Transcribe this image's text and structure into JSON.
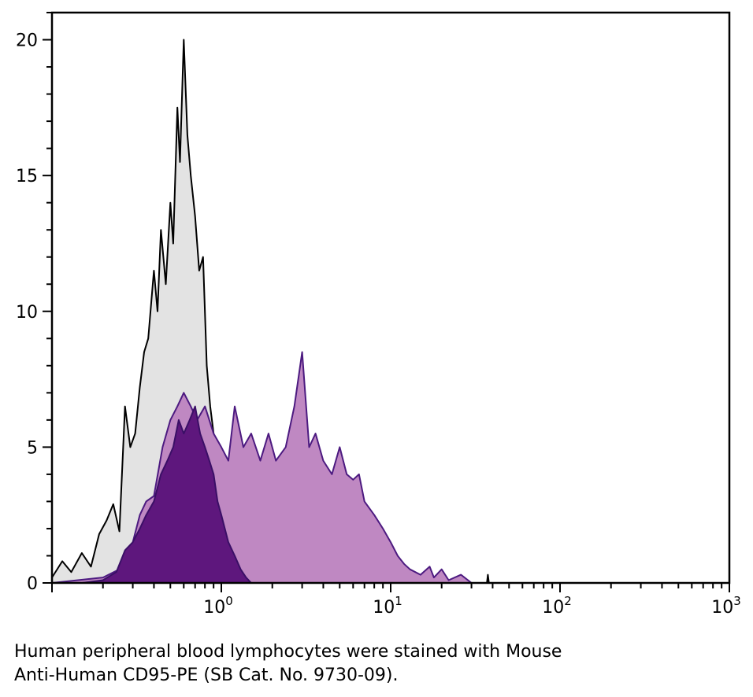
{
  "chart_data": {
    "type": "area",
    "title": "",
    "xlabel": "",
    "ylabel": "",
    "x_scale": "log",
    "xlim": [
      0.1,
      1000
    ],
    "ylim": [
      0,
      21
    ],
    "grid": false,
    "x_ticks": [
      {
        "base": "10",
        "exp": "0",
        "value": 1
      },
      {
        "base": "10",
        "exp": "1",
        "value": 10
      },
      {
        "base": "10",
        "exp": "2",
        "value": 100
      },
      {
        "base": "10",
        "exp": "3",
        "value": 1000
      }
    ],
    "y_ticks": [
      "0",
      "5",
      "10",
      "15",
      "20"
    ],
    "series": [
      {
        "fill": "#e3e3e3",
        "line": "#000000",
        "points": [
          [
            0.1,
            0.2
          ],
          [
            0.115,
            0.8
          ],
          [
            0.13,
            0.4
          ],
          [
            0.15,
            1.1
          ],
          [
            0.17,
            0.6
          ],
          [
            0.19,
            1.8
          ],
          [
            0.21,
            2.3
          ],
          [
            0.23,
            2.9
          ],
          [
            0.25,
            1.9
          ],
          [
            0.27,
            6.5
          ],
          [
            0.29,
            5.0
          ],
          [
            0.31,
            5.5
          ],
          [
            0.33,
            7.2
          ],
          [
            0.35,
            8.5
          ],
          [
            0.37,
            9.0
          ],
          [
            0.4,
            11.5
          ],
          [
            0.42,
            10.0
          ],
          [
            0.44,
            13.0
          ],
          [
            0.47,
            11.0
          ],
          [
            0.5,
            14.0
          ],
          [
            0.52,
            12.5
          ],
          [
            0.55,
            17.5
          ],
          [
            0.57,
            15.5
          ],
          [
            0.6,
            20.0
          ],
          [
            0.63,
            16.5
          ],
          [
            0.66,
            15.0
          ],
          [
            0.7,
            13.5
          ],
          [
            0.74,
            11.5
          ],
          [
            0.78,
            12.0
          ],
          [
            0.82,
            8.0
          ],
          [
            0.86,
            6.5
          ],
          [
            0.9,
            5.5
          ],
          [
            0.95,
            4.0
          ],
          [
            1.0,
            3.0
          ],
          [
            1.05,
            2.0
          ],
          [
            1.1,
            1.5
          ],
          [
            1.2,
            0.8
          ],
          [
            1.3,
            0.5
          ],
          [
            1.4,
            0.3
          ],
          [
            1.5,
            0.2
          ],
          [
            1.7,
            0.1
          ],
          [
            2.0,
            0.05
          ],
          [
            3.0,
            0.0
          ],
          [
            37.0,
            0.0
          ],
          [
            37.5,
            0.3
          ],
          [
            38.0,
            0.0
          ],
          [
            1000,
            0.0
          ]
        ]
      },
      {
        "fill": "#bf88c2",
        "line": "#4c1a80",
        "points": [
          [
            0.1,
            0.0
          ],
          [
            0.2,
            0.2
          ],
          [
            0.25,
            0.5
          ],
          [
            0.28,
            1.0
          ],
          [
            0.3,
            1.5
          ],
          [
            0.33,
            2.5
          ],
          [
            0.36,
            3.0
          ],
          [
            0.4,
            3.2
          ],
          [
            0.45,
            5.0
          ],
          [
            0.5,
            6.0
          ],
          [
            0.55,
            6.5
          ],
          [
            0.6,
            7.0
          ],
          [
            0.66,
            6.5
          ],
          [
            0.72,
            6.0
          ],
          [
            0.8,
            6.5
          ],
          [
            0.9,
            5.5
          ],
          [
            1.0,
            5.0
          ],
          [
            1.1,
            4.5
          ],
          [
            1.2,
            6.5
          ],
          [
            1.35,
            5.0
          ],
          [
            1.5,
            5.5
          ],
          [
            1.7,
            4.5
          ],
          [
            1.9,
            5.5
          ],
          [
            2.1,
            4.5
          ],
          [
            2.4,
            5.0
          ],
          [
            2.7,
            6.5
          ],
          [
            3.0,
            8.5
          ],
          [
            3.3,
            5.0
          ],
          [
            3.6,
            5.5
          ],
          [
            4.0,
            4.5
          ],
          [
            4.5,
            4.0
          ],
          [
            5.0,
            5.0
          ],
          [
            5.5,
            4.0
          ],
          [
            6.0,
            3.8
          ],
          [
            6.5,
            4.0
          ],
          [
            7.0,
            3.0
          ],
          [
            8.0,
            2.5
          ],
          [
            9.0,
            2.0
          ],
          [
            10.0,
            1.5
          ],
          [
            11.0,
            1.0
          ],
          [
            12.0,
            0.7
          ],
          [
            13.0,
            0.5
          ],
          [
            15.0,
            0.3
          ],
          [
            17.0,
            0.6
          ],
          [
            18.0,
            0.2
          ],
          [
            20.0,
            0.5
          ],
          [
            22.0,
            0.1
          ],
          [
            26.0,
            0.3
          ],
          [
            30.0,
            0.0
          ],
          [
            1000,
            0.0
          ]
        ]
      },
      {
        "fill": "#5e177d",
        "line": "#3a0f66",
        "points": [
          [
            0.15,
            0.0
          ],
          [
            0.2,
            0.1
          ],
          [
            0.24,
            0.4
          ],
          [
            0.27,
            1.2
          ],
          [
            0.3,
            1.5
          ],
          [
            0.33,
            2.0
          ],
          [
            0.36,
            2.5
          ],
          [
            0.4,
            3.0
          ],
          [
            0.44,
            4.0
          ],
          [
            0.48,
            4.5
          ],
          [
            0.52,
            5.0
          ],
          [
            0.56,
            6.0
          ],
          [
            0.6,
            5.5
          ],
          [
            0.65,
            6.0
          ],
          [
            0.7,
            6.5
          ],
          [
            0.75,
            5.5
          ],
          [
            0.8,
            5.0
          ],
          [
            0.85,
            4.5
          ],
          [
            0.9,
            4.0
          ],
          [
            0.95,
            3.0
          ],
          [
            1.0,
            2.5
          ],
          [
            1.1,
            1.5
          ],
          [
            1.2,
            1.0
          ],
          [
            1.3,
            0.5
          ],
          [
            1.4,
            0.2
          ],
          [
            1.5,
            0.0
          ]
        ]
      }
    ]
  },
  "caption": {
    "line1": "Human peripheral blood lymphocytes were stained with Mouse",
    "line2": "Anti-Human CD95-PE (SB Cat. No. 9730-09)."
  }
}
